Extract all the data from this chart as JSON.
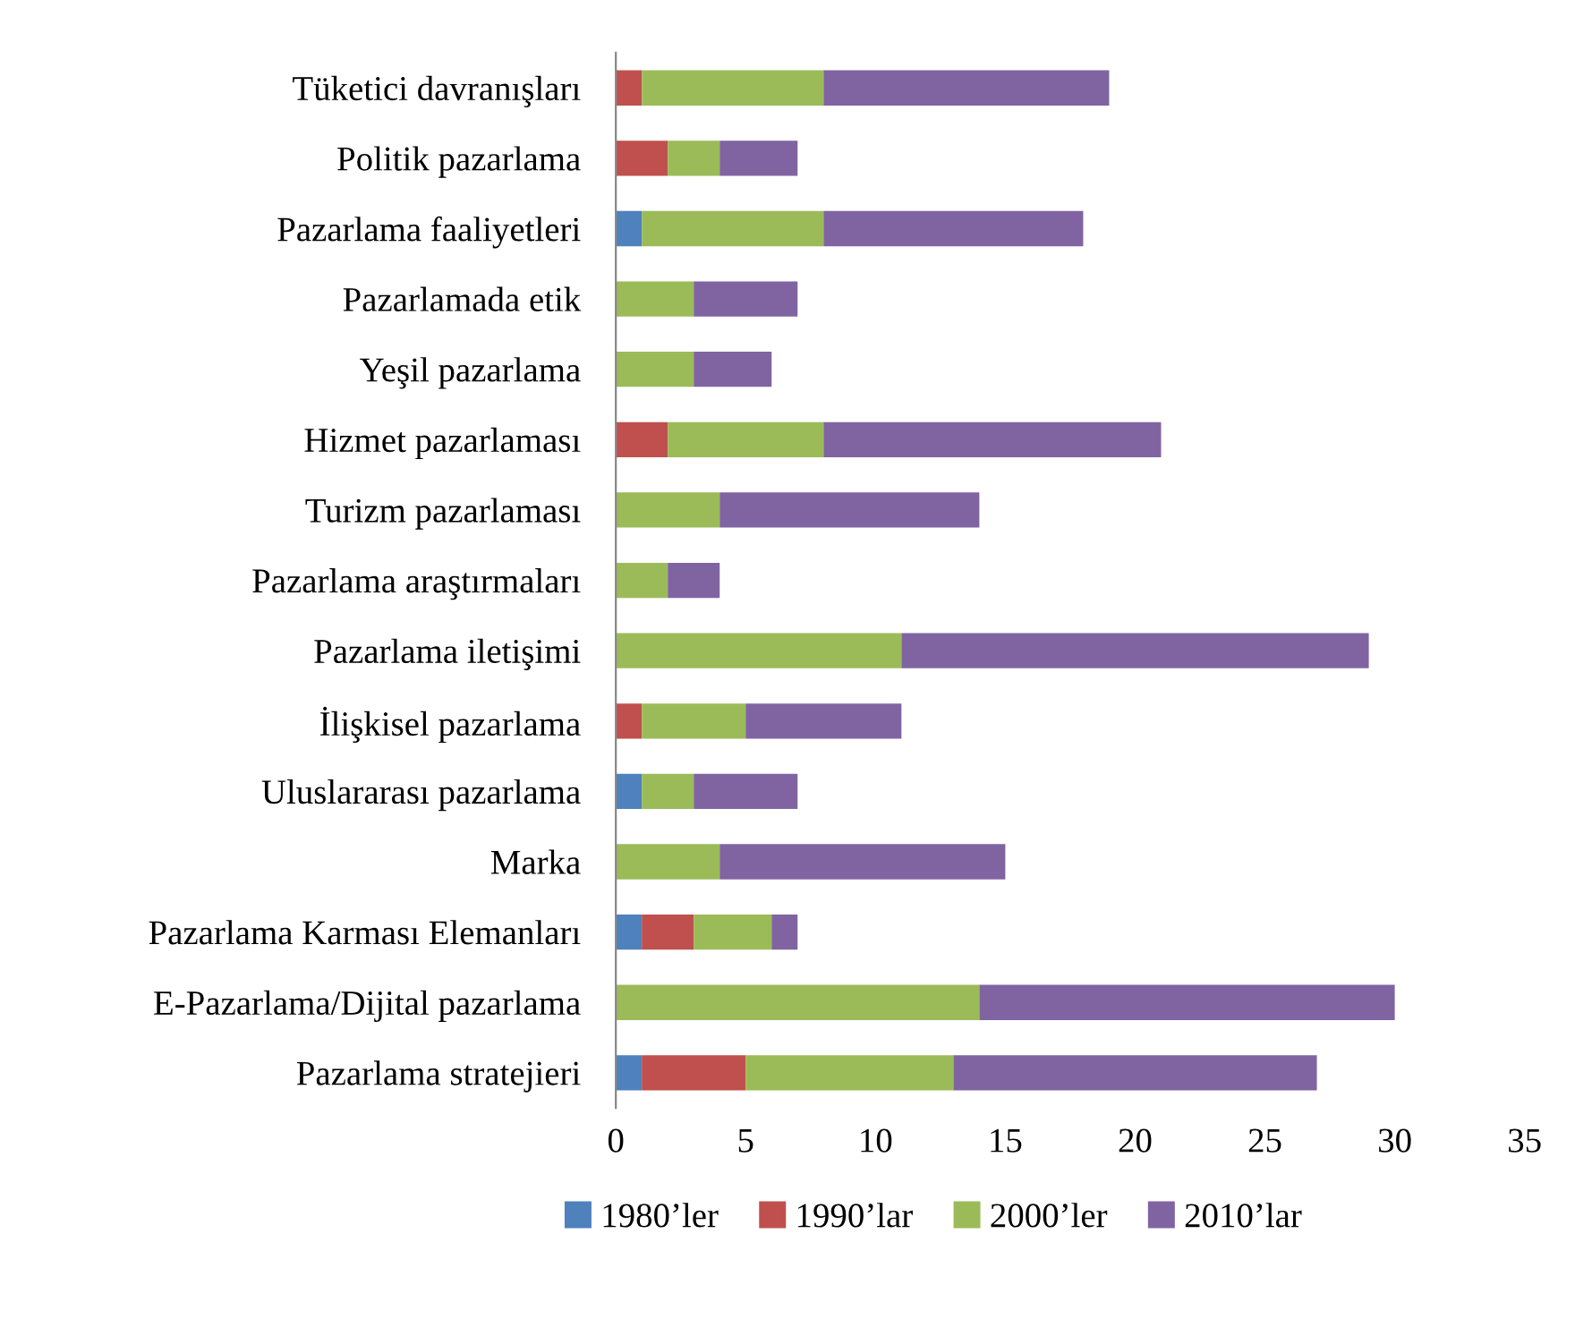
{
  "chart_data": {
    "type": "bar",
    "orientation": "horizontal",
    "stacked": true,
    "categories": [
      "Tüketici davranışları",
      "Politik pazarlama",
      "Pazarlama faaliyetleri",
      "Pazarlamada etik",
      "Yeşil pazarlama",
      "Hizmet pazarlaması",
      "Turizm pazarlaması",
      "Pazarlama araştırmaları",
      "Pazarlama iletişimi",
      "İlişkisel pazarlama",
      "Uluslararası pazarlama",
      "Marka",
      "Pazarlama Karması Elemanları",
      "E-Pazarlama/Dijital pazarlama",
      "Pazarlama stratejieri"
    ],
    "series": [
      {
        "name": "1980’ler",
        "color": "#4f81bd",
        "values": [
          null,
          null,
          1,
          null,
          null,
          null,
          null,
          null,
          null,
          null,
          1,
          null,
          1,
          null,
          1
        ]
      },
      {
        "name": "1990’lar",
        "color": "#c0504d",
        "values": [
          1,
          2,
          null,
          null,
          null,
          2,
          null,
          null,
          null,
          1,
          null,
          null,
          2,
          null,
          4
        ]
      },
      {
        "name": "2000’ler",
        "color": "#9bbb59",
        "values": [
          7,
          2,
          7,
          3,
          3,
          6,
          4,
          2,
          11,
          4,
          2,
          4,
          3,
          14,
          8
        ]
      },
      {
        "name": "2010’lar",
        "color": "#8064a2",
        "values": [
          11,
          3,
          10,
          4,
          3,
          13,
          10,
          2,
          18,
          6,
          4,
          11,
          1,
          16,
          14
        ]
      }
    ],
    "xlim": [
      0,
      35
    ],
    "xticks": [
      0,
      5,
      10,
      15,
      20,
      25,
      30,
      35
    ],
    "grid": false,
    "legend": "bottom"
  }
}
